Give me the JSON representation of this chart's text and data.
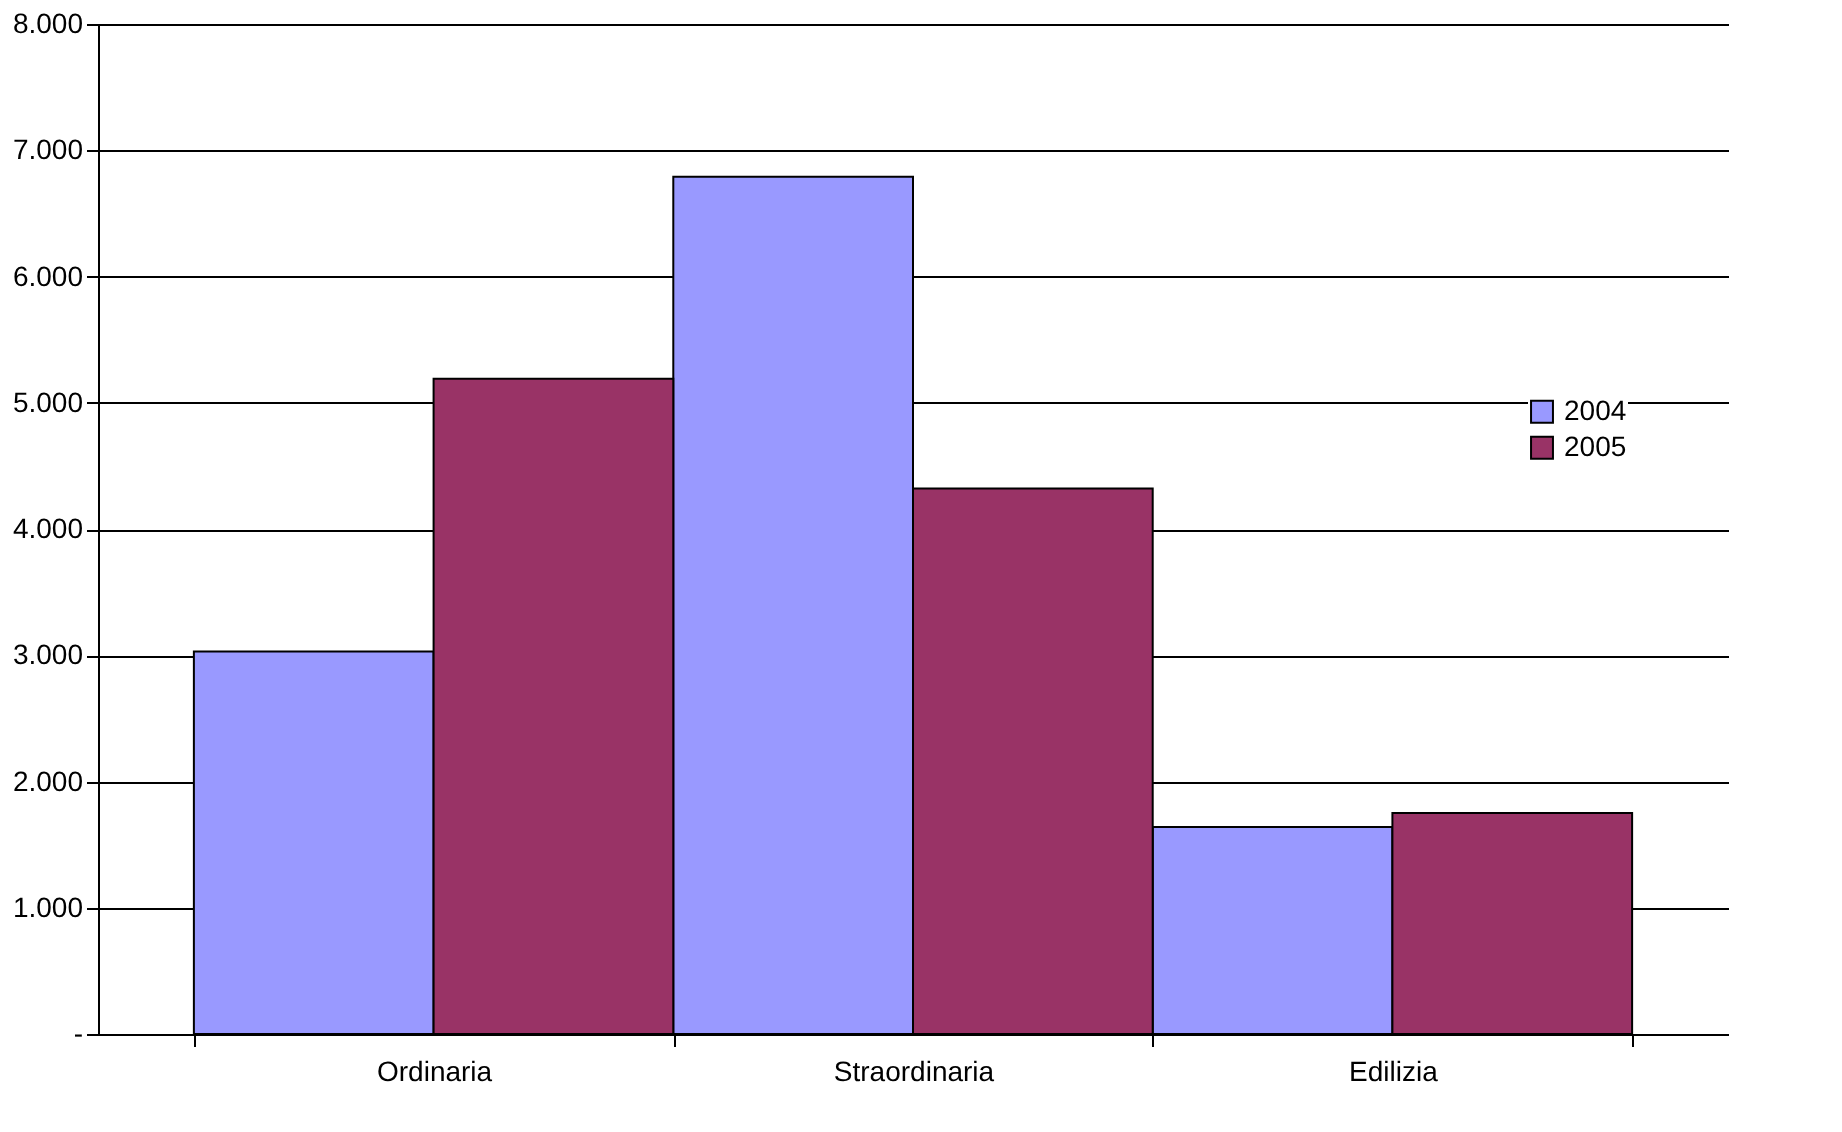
{
  "chart_data": {
    "type": "bar",
    "categories": [
      "Ordinaria",
      "Straordinaria",
      "Edilizia"
    ],
    "series": [
      {
        "name": "2004",
        "color": "#9999ff",
        "values": [
          3030,
          6790,
          1640
        ]
      },
      {
        "name": "2005",
        "color": "#993366",
        "values": [
          5190,
          4320,
          1750
        ]
      }
    ],
    "ylim": [
      0,
      8000
    ],
    "yticks": [
      {
        "value": 0,
        "label": "-"
      },
      {
        "value": 1000,
        "label": "1.000"
      },
      {
        "value": 2000,
        "label": "2.000"
      },
      {
        "value": 3000,
        "label": "3.000"
      },
      {
        "value": 4000,
        "label": "4.000"
      },
      {
        "value": 5000,
        "label": "5.000"
      },
      {
        "value": 6000,
        "label": "6.000"
      },
      {
        "value": 7000,
        "label": "7.000"
      },
      {
        "value": 8000,
        "label": "8.000"
      }
    ],
    "grid": "y",
    "legend": "right"
  }
}
